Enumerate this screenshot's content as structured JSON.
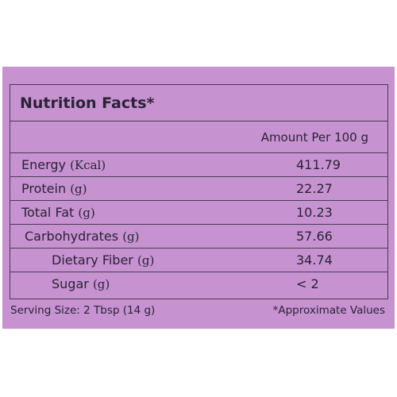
{
  "title": "Nutrition Facts*",
  "column_header": "Amount Per 100 g",
  "rows": [
    {
      "name": "Energy",
      "unit": "(Kcal)",
      "value": "411.79"
    },
    {
      "name": "Protein",
      "unit": "(g)",
      "value": "22.27"
    },
    {
      "name": "Total Fat",
      "unit": "(g)",
      "value": "10.23"
    },
    {
      "name": "Carbohydrates",
      "unit": "(g)",
      "value": "57.66"
    },
    {
      "name": "Dietary Fiber",
      "unit": "(g)",
      "value": "34.74"
    },
    {
      "name": "Sugar",
      "unit": "(g)",
      "value": "< 2"
    }
  ],
  "serving_size": "Serving Size: 2 Tbsp (14 g)",
  "note": "*Approximate Values",
  "colors": {
    "background": "#c692d0",
    "text": "#2b2238",
    "border": "#4a3b55"
  }
}
